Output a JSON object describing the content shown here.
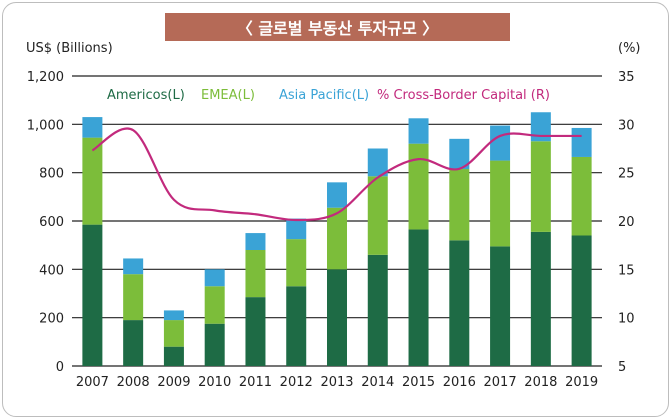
{
  "chart_data": {
    "type": "bar",
    "title": "〈 글로벌 부동산 투자규모 〉",
    "left_axis_unit": "US$ (Billions)",
    "right_axis_unit": "(%)",
    "categories": [
      "2007",
      "2008",
      "2009",
      "2010",
      "2011",
      "2012",
      "2013",
      "2014",
      "2015",
      "2016",
      "2017",
      "2018",
      "2019"
    ],
    "stacked": true,
    "ylim": [
      0,
      1200
    ],
    "y_ticks": [
      "0",
      "200",
      "400",
      "600",
      "800",
      "1,000",
      "1,200"
    ],
    "y2lim": [
      5,
      35
    ],
    "y2_ticks": [
      "5",
      "10",
      "15",
      "20",
      "25",
      "30",
      "35"
    ],
    "grid": true,
    "legend_position": "top",
    "series": [
      {
        "name": "Americos(L)",
        "color": "#1e6b45",
        "values": [
          585,
          190,
          80,
          175,
          285,
          330,
          400,
          460,
          565,
          520,
          495,
          555,
          540
        ]
      },
      {
        "name": "EMEA(L)",
        "color": "#7cbd3a",
        "values": [
          360,
          190,
          110,
          155,
          195,
          195,
          255,
          325,
          355,
          295,
          355,
          375,
          325
        ]
      },
      {
        "name": "Asia Pacific(L)",
        "color": "#3aa3d6",
        "values": [
          85,
          65,
          40,
          70,
          70,
          85,
          105,
          115,
          105,
          125,
          145,
          120,
          120
        ]
      }
    ],
    "line_series": {
      "name": "% Cross-Border Capital (R)",
      "color": "#c22a7d",
      "axis": "right",
      "values": [
        27.3,
        29.4,
        22.2,
        21.1,
        20.7,
        20.1,
        20.8,
        24.5,
        26.4,
        25.4,
        28.8,
        28.8,
        28.8
      ]
    }
  }
}
